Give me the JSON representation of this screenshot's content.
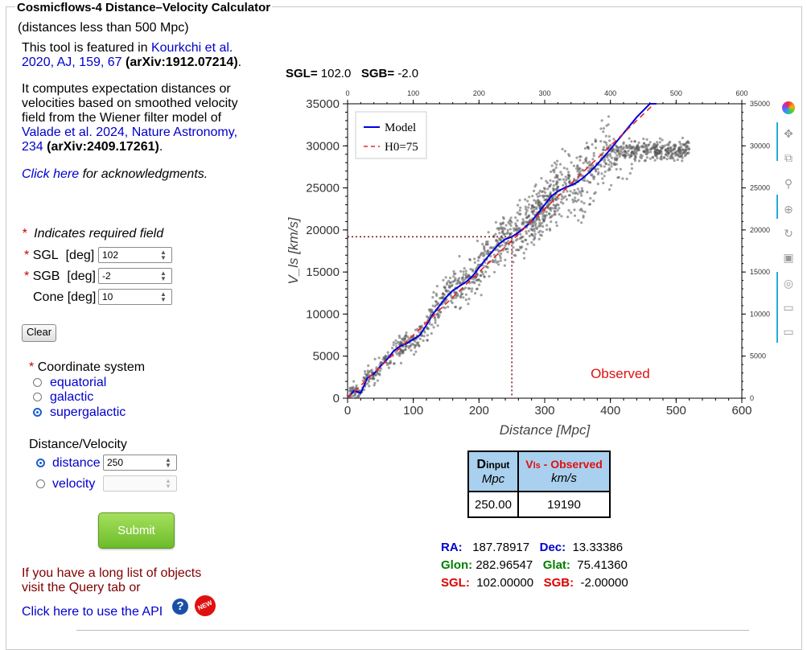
{
  "title": "Cosmicflows-4 Distance–Velocity Calculator",
  "subtitle": "(distances less than 500 Mpc)",
  "intro1": {
    "pre": "This tool is featured in ",
    "link": "Kourkchi et al. 2020, AJ, 159, 67",
    "bold": "(arXiv:1912.07214)",
    "post": "."
  },
  "intro2": {
    "pre": "It computes expectation distances or velocities based on smoothed velocity field from the Wiener filter model of ",
    "link": "Valade et al. 2024, Nature Astronomy, 234",
    "bold": "(arXiv:2409.17261)",
    "post": "."
  },
  "ack": {
    "link": "Click here",
    "text": " for acknowledgments."
  },
  "required_note": "Indicates required field",
  "fields": {
    "sgl": {
      "label": "SGL",
      "unit": "[deg]",
      "value": "102"
    },
    "sgb": {
      "label": "SGB",
      "unit": "[deg]",
      "value": "-2"
    },
    "cone": {
      "label": "Cone",
      "unit": "[deg]",
      "value": "10"
    }
  },
  "clear_label": "Clear",
  "coord_system": {
    "label": "Coordinate system",
    "options": [
      "equatorial",
      "galactic",
      "supergalactic"
    ],
    "selected": "supergalactic"
  },
  "dist_vel": {
    "label": "Distance/Velocity",
    "distance_label": "distance",
    "distance_value": "250",
    "velocity_label": "velocity",
    "selected": "distance"
  },
  "submit_label": "Submit",
  "long_list": "If you have a long list of objects visit the Query tab or",
  "api_link": "Click here to use the API",
  "new_badge": "NEW",
  "plot_header": {
    "sgl_label": "SGL=",
    "sgl_value": "102.0",
    "sgb_label": "SGB=",
    "sgb_value": "-2.0"
  },
  "result_table": {
    "col1_main": "D",
    "col1_sub": "input",
    "col1_unit": "Mpc",
    "col2_main": "V",
    "col2_sub": "ls",
    "col2_suffix": " - Observed",
    "col2_unit": "km/s",
    "col1_value": "250.00",
    "col2_value": "19190"
  },
  "coords": {
    "ra_label": "RA:",
    "ra": "187.78917",
    "dec_label": "Dec:",
    "dec": "13.33386",
    "glon_label": "Glon:",
    "glon": "282.96547",
    "glat_label": "Glat:",
    "glat": "75.41360",
    "sgl_label": "SGL:",
    "sgl": "102.00000",
    "sgb_label": "SGB:",
    "sgb": "-2.00000"
  },
  "colors": {
    "link": "#0000cc",
    "required": "#cc0000",
    "model": "#0000dd",
    "h0": "#ee2222",
    "ra": "#0000cc",
    "glon": "#008000",
    "sgl": "#dd0000",
    "table_header": "#a9d0ee",
    "submit": "#7ac43a"
  },
  "toolbar_icons": [
    "bokeh-logo-icon",
    "pan-icon",
    "box-zoom-icon",
    "wheel-zoom-icon",
    "zoom-in-icon",
    "reset-icon",
    "save-icon",
    "hover-icon",
    "comment-icon",
    "comment-icon"
  ],
  "chart_data": {
    "type": "scatter",
    "xlabel": "Distance [Mpc]",
    "ylabel": "V_ls [km/s]",
    "xlim": [
      0,
      600
    ],
    "ylim": [
      0,
      35000
    ],
    "x_ticks": [
      0,
      100,
      200,
      300,
      400,
      500,
      600
    ],
    "y_ticks": [
      0,
      5000,
      10000,
      15000,
      20000,
      25000,
      30000,
      35000
    ],
    "annotation": "Observed",
    "marker": {
      "x": 250,
      "y": 19190
    },
    "legend": "top-left",
    "series": [
      {
        "name": "Model",
        "style": "solid",
        "color": "#0000dd",
        "x": [
          0,
          10,
          20,
          30,
          40,
          50,
          60,
          70,
          80,
          90,
          100,
          110,
          120,
          130,
          140,
          150,
          160,
          170,
          180,
          190,
          200,
          210,
          220,
          230,
          240,
          250,
          260,
          270,
          280,
          290,
          300,
          310,
          320,
          330,
          340,
          350,
          360,
          370,
          380,
          390,
          400,
          420,
          440,
          460,
          470
        ],
        "y": [
          0,
          900,
          600,
          2400,
          2900,
          3800,
          4600,
          5600,
          6200,
          6500,
          7000,
          7500,
          8700,
          10000,
          11000,
          12000,
          12800,
          13300,
          13800,
          14500,
          15500,
          16500,
          17400,
          18300,
          18900,
          19190,
          19700,
          20300,
          21000,
          22000,
          23000,
          24000,
          24600,
          25000,
          25300,
          25700,
          26300,
          27000,
          27800,
          28700,
          29600,
          31500,
          33400,
          35000,
          35000
        ]
      },
      {
        "name": "H0=75",
        "style": "dashed",
        "color": "#ee2222",
        "x": [
          0,
          466.7
        ],
        "y": [
          0,
          35000
        ]
      }
    ],
    "scatter_color": "#555555",
    "scatter_points": "about 1500 gray points scattered around the model curve"
  }
}
